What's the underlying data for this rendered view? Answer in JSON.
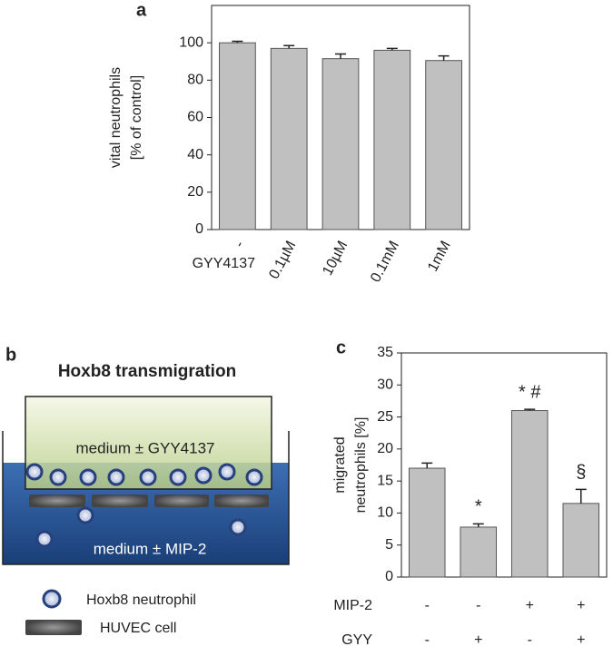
{
  "chart_data": [
    {
      "type": "bar",
      "panel": "a",
      "ylabel": [
        "vital neutrophils",
        "[% of control]"
      ],
      "xlabel": "GYY4137",
      "categories": [
        "-",
        "0.1µM",
        "10µM",
        "0.1mM",
        "1mM"
      ],
      "values": [
        100,
        97,
        91.5,
        96,
        90.5
      ],
      "errors": [
        0.8,
        1.5,
        2.5,
        1,
        2.5
      ],
      "color": "#c0c0c0",
      "ylim": [
        0,
        120
      ],
      "yticks": [
        0,
        20,
        40,
        60,
        80,
        100
      ]
    },
    {
      "type": "bar",
      "panel": "c",
      "ylabel": [
        "migrated",
        "neutrophils [%]"
      ],
      "factors": [
        {
          "name": "MIP-2",
          "levels": [
            "-",
            "-",
            "+",
            "+"
          ]
        },
        {
          "name": "GYY",
          "levels": [
            "-",
            "+",
            "-",
            "+"
          ]
        }
      ],
      "values": [
        17,
        7.8,
        26,
        11.5
      ],
      "errors": [
        0.8,
        0.5,
        0.2,
        2.2
      ],
      "annotations": [
        null,
        "*",
        "* #",
        "§"
      ],
      "color": "#c0c0c0",
      "ylim": [
        0,
        35
      ],
      "yticks": [
        0,
        5,
        10,
        15,
        20,
        25,
        30,
        35
      ]
    }
  ],
  "diagram": {
    "panel": "b",
    "title": "Hoxb8 transmigration",
    "upper": "medium ± GYY4137",
    "lower": "medium ± MIP-2",
    "legend": [
      "Hoxb8 neutrophil",
      "HUVEC cell"
    ]
  }
}
